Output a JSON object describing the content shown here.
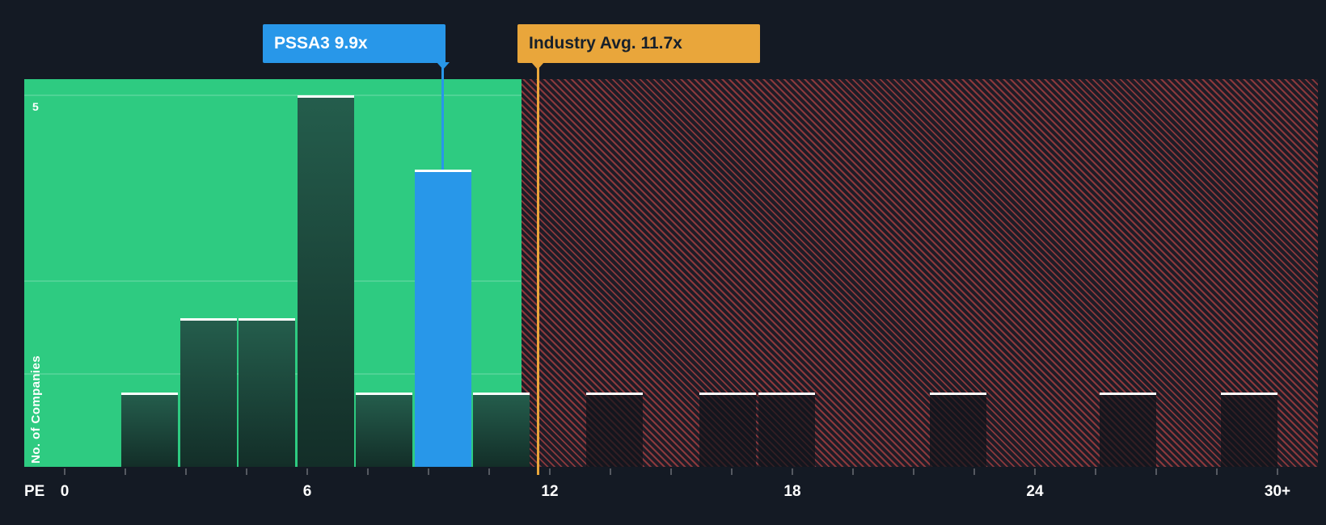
{
  "chart_data": {
    "type": "bar",
    "title": "",
    "xlabel": "PE",
    "ylabel": "No. of Companies",
    "x_tick_labels": [
      "0",
      "6",
      "12",
      "18",
      "24",
      "30+"
    ],
    "x_tick_values": [
      0,
      6,
      12,
      18,
      24,
      30
    ],
    "xlim": [
      -1,
      31
    ],
    "ylim": [
      0,
      5.2
    ],
    "y_top_tick_label": "5",
    "y_top_tick_value": 5,
    "gridline_values": [
      1.25,
      2.5,
      5
    ],
    "minor_tick_step": 1.5,
    "grid": true,
    "legend_position": "none",
    "bars": [
      {
        "pe": 2.1,
        "count": 1,
        "zone": "below"
      },
      {
        "pe": 3.55,
        "count": 2,
        "zone": "below"
      },
      {
        "pe": 5.0,
        "count": 2,
        "zone": "below"
      },
      {
        "pe": 6.45,
        "count": 5,
        "zone": "below"
      },
      {
        "pe": 7.9,
        "count": 1,
        "zone": "below"
      },
      {
        "pe": 9.35,
        "count": 4,
        "zone": "below",
        "is_company": true
      },
      {
        "pe": 10.8,
        "count": 1,
        "zone": "below"
      },
      {
        "pe": 13.6,
        "count": 1,
        "zone": "above"
      },
      {
        "pe": 16.4,
        "count": 1,
        "zone": "above"
      },
      {
        "pe": 17.85,
        "count": 1,
        "zone": "above"
      },
      {
        "pe": 22.1,
        "count": 1,
        "zone": "above"
      },
      {
        "pe": 26.3,
        "count": 1,
        "zone": "above"
      },
      {
        "pe": 29.3,
        "count": 1,
        "zone": "above"
      }
    ],
    "markers": {
      "company": {
        "name": "PSSA3",
        "value": 9.9,
        "label": "PSSA3 9.9x"
      },
      "industry": {
        "name": "Industry Avg.",
        "value": 11.7,
        "label": "Industry Avg. 11.7x"
      }
    },
    "zone_boundary_pe": 11.3
  },
  "axis": {
    "x_prefix_label": "PE",
    "y_top_tick_label": "5",
    "y_axis_title": "No. of Companies"
  },
  "callouts": {
    "company_label": "PSSA3 9.9x",
    "industry_label": "Industry Avg. 11.7x"
  },
  "colors": {
    "background": "#141A24",
    "undervalued_zone_green": "#2ECB81",
    "company_bar_blue": "#2897E9",
    "industry_marker_amber": "#E9A63B",
    "overvalued_hatch_red": "#E4504D",
    "bar_cap_white": "#FFFFFF",
    "callout_dark_text": "#17202B"
  }
}
